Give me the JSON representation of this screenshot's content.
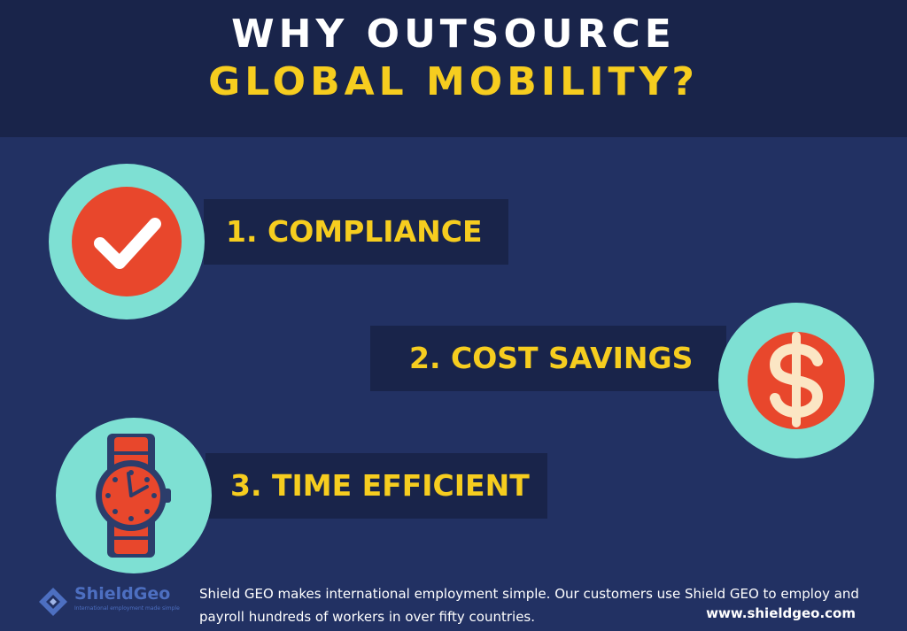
{
  "title": {
    "line1": "WHY OUTSOURCE",
    "line2": "GLOBAL MOBILITY?"
  },
  "items": [
    {
      "label": "1. COMPLIANCE",
      "icon": "checkmark-icon"
    },
    {
      "label": "2. COST SAVINGS",
      "icon": "dollar-icon"
    },
    {
      "label": "3. TIME EFFICIENT",
      "icon": "watch-icon"
    }
  ],
  "footer": {
    "logo_name": "ShieldGeo",
    "logo_tagline": "International employment made simple",
    "description": "Shield GEO makes international employment simple. Our customers use Shield GEO to employ and payroll hundreds of workers in over fifty countries.",
    "url": "www.shieldgeo.com"
  },
  "colors": {
    "background": "#223163",
    "header": "#19244a",
    "accent_yellow": "#f6cd1f",
    "teal": "#7ee0d3",
    "red": "#e8472c",
    "logo_blue": "#4d6fc1"
  }
}
